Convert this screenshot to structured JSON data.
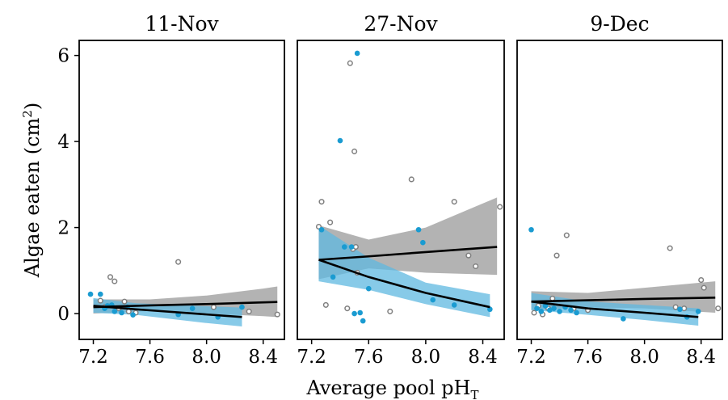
{
  "figure": {
    "ylabel_main": "Algae eaten",
    "ylabel_unit_open": "(cm",
    "ylabel_unit_sup": "2",
    "ylabel_unit_close": ")",
    "xlabel_main": "Average pool pH",
    "xlabel_sub": "T"
  },
  "colors": {
    "open_points": "#7f7f7f",
    "filled_points": "#1a9bd1",
    "ribbon_grey": "#a6a6a6",
    "ribbon_blue": "#5fb8e0",
    "fit_line": "#000000"
  },
  "chart_data": [
    {
      "type": "scatter",
      "title": "11-Nov",
      "xlim": [
        7.1,
        8.55
      ],
      "ylim": [
        -0.6,
        6.35
      ],
      "xticks": [
        7.2,
        7.6,
        8.0,
        8.4
      ],
      "xtick_labels": [
        "7.2",
        "7.6",
        "8.0",
        "8.4"
      ],
      "yticks": [
        0,
        2,
        4,
        6
      ],
      "ytick_labels": [
        "0",
        "2",
        "4",
        "6"
      ],
      "series": [
        {
          "style": "open",
          "points": [
            [
              7.25,
              0.3
            ],
            [
              7.28,
              0.15
            ],
            [
              7.32,
              0.85
            ],
            [
              7.35,
              0.75
            ],
            [
              7.38,
              0.12
            ],
            [
              7.42,
              0.28
            ],
            [
              7.45,
              0.05
            ],
            [
              7.5,
              0.02
            ],
            [
              7.8,
              1.2
            ],
            [
              8.05,
              0.15
            ],
            [
              8.3,
              0.05
            ],
            [
              8.5,
              -0.02
            ]
          ]
        },
        {
          "style": "filled",
          "points": [
            [
              7.18,
              0.45
            ],
            [
              7.25,
              0.45
            ],
            [
              7.28,
              0.12
            ],
            [
              7.3,
              0.18
            ],
            [
              7.33,
              0.2
            ],
            [
              7.35,
              0.05
            ],
            [
              7.4,
              0.02
            ],
            [
              7.44,
              0.15
            ],
            [
              7.48,
              -0.03
            ],
            [
              7.8,
              -0.02
            ],
            [
              7.9,
              0.12
            ],
            [
              8.08,
              -0.08
            ],
            [
              8.25,
              0.15
            ]
          ]
        }
      ],
      "fits": [
        {
          "style": "grey",
          "x": [
            7.2,
            7.6,
            8.0,
            8.4,
            8.5
          ],
          "fit": [
            0.15,
            0.19,
            0.22,
            0.26,
            0.27
          ],
          "lo": [
            0.0,
            0.06,
            0.0,
            -0.06,
            -0.08
          ],
          "hi": [
            0.33,
            0.33,
            0.42,
            0.58,
            0.63
          ]
        },
        {
          "style": "blue",
          "x": [
            7.2,
            7.5,
            8.0,
            8.25
          ],
          "fit": [
            0.18,
            0.1,
            -0.02,
            -0.08
          ],
          "lo": [
            0.02,
            -0.03,
            -0.22,
            -0.3
          ],
          "hi": [
            0.36,
            0.24,
            0.17,
            0.14
          ]
        }
      ]
    },
    {
      "type": "scatter",
      "title": "27-Nov",
      "xlim": [
        7.1,
        8.55
      ],
      "ylim": [
        -0.6,
        6.35
      ],
      "xticks": [
        7.2,
        7.6,
        8.0,
        8.4
      ],
      "xtick_labels": [
        "7.2",
        "7.6",
        "8.0",
        "8.4"
      ],
      "series": [
        {
          "style": "open",
          "points": [
            [
              7.25,
              2.02
            ],
            [
              7.27,
              2.6
            ],
            [
              7.3,
              0.2
            ],
            [
              7.33,
              2.12
            ],
            [
              7.45,
              0.12
            ],
            [
              7.47,
              5.82
            ],
            [
              7.49,
              1.5
            ],
            [
              7.5,
              3.77
            ],
            [
              7.51,
              1.55
            ],
            [
              7.52,
              0.95
            ],
            [
              7.75,
              0.05
            ],
            [
              7.9,
              3.12
            ],
            [
              8.2,
              2.6
            ],
            [
              8.3,
              1.35
            ],
            [
              8.35,
              1.1
            ],
            [
              8.52,
              2.48
            ]
          ]
        },
        {
          "style": "filled",
          "points": [
            [
              7.27,
              1.95
            ],
            [
              7.35,
              0.85
            ],
            [
              7.4,
              4.02
            ],
            [
              7.43,
              1.55
            ],
            [
              7.48,
              1.55
            ],
            [
              7.5,
              0.0
            ],
            [
              7.52,
              6.05
            ],
            [
              7.54,
              0.02
            ],
            [
              7.56,
              -0.17
            ],
            [
              7.6,
              0.58
            ],
            [
              7.95,
              1.95
            ],
            [
              7.98,
              1.65
            ],
            [
              8.05,
              0.32
            ],
            [
              8.2,
              0.2
            ],
            [
              8.45,
              0.1
            ]
          ]
        }
      ],
      "fits": [
        {
          "style": "grey",
          "x": [
            7.25,
            7.6,
            8.0,
            8.5
          ],
          "fit": [
            1.25,
            1.33,
            1.43,
            1.55
          ],
          "lo": [
            0.8,
            1.05,
            0.95,
            0.9
          ],
          "hi": [
            2.05,
            1.72,
            2.0,
            2.7
          ]
        },
        {
          "style": "blue",
          "x": [
            7.25,
            7.6,
            8.0,
            8.45
          ],
          "fit": [
            1.25,
            0.85,
            0.48,
            0.15
          ],
          "lo": [
            0.75,
            0.55,
            0.22,
            -0.08
          ],
          "hi": [
            2.05,
            1.3,
            0.72,
            0.45
          ]
        }
      ]
    },
    {
      "type": "scatter",
      "title": "9-Dec",
      "xlim": [
        7.1,
        8.55
      ],
      "ylim": [
        -0.6,
        6.35
      ],
      "xticks": [
        7.2,
        7.6,
        8.0,
        8.4
      ],
      "xtick_labels": [
        "7.2",
        "7.6",
        "8.0",
        "8.4"
      ],
      "series": [
        {
          "style": "open",
          "points": [
            [
              7.22,
              0.02
            ],
            [
              7.25,
              0.18
            ],
            [
              7.28,
              -0.02
            ],
            [
              7.32,
              0.12
            ],
            [
              7.35,
              0.35
            ],
            [
              7.38,
              1.35
            ],
            [
              7.45,
              1.82
            ],
            [
              7.5,
              0.12
            ],
            [
              7.6,
              0.08
            ],
            [
              8.18,
              1.52
            ],
            [
              8.22,
              0.15
            ],
            [
              8.28,
              0.12
            ],
            [
              8.4,
              0.78
            ],
            [
              8.42,
              0.6
            ],
            [
              8.52,
              0.12
            ]
          ]
        },
        {
          "style": "filled",
          "points": [
            [
              7.2,
              1.95
            ],
            [
              7.24,
              0.12
            ],
            [
              7.27,
              0.05
            ],
            [
              7.3,
              0.18
            ],
            [
              7.33,
              0.08
            ],
            [
              7.36,
              0.12
            ],
            [
              7.4,
              0.05
            ],
            [
              7.44,
              0.15
            ],
            [
              7.48,
              0.08
            ],
            [
              7.52,
              0.02
            ],
            [
              7.85,
              -0.12
            ],
            [
              8.25,
              0.1
            ],
            [
              8.3,
              -0.08
            ],
            [
              8.38,
              0.05
            ]
          ]
        }
      ],
      "fits": [
        {
          "style": "grey",
          "x": [
            7.2,
            7.6,
            8.0,
            8.5
          ],
          "fit": [
            0.28,
            0.31,
            0.34,
            0.37
          ],
          "lo": [
            0.08,
            0.15,
            0.12,
            0.02
          ],
          "hi": [
            0.52,
            0.48,
            0.6,
            0.75
          ]
        },
        {
          "style": "blue",
          "x": [
            7.2,
            7.6,
            8.0,
            8.38
          ],
          "fit": [
            0.28,
            0.12,
            0.02,
            -0.08
          ],
          "lo": [
            0.08,
            -0.03,
            -0.15,
            -0.28
          ],
          "hi": [
            0.48,
            0.28,
            0.2,
            0.12
          ]
        }
      ]
    }
  ]
}
